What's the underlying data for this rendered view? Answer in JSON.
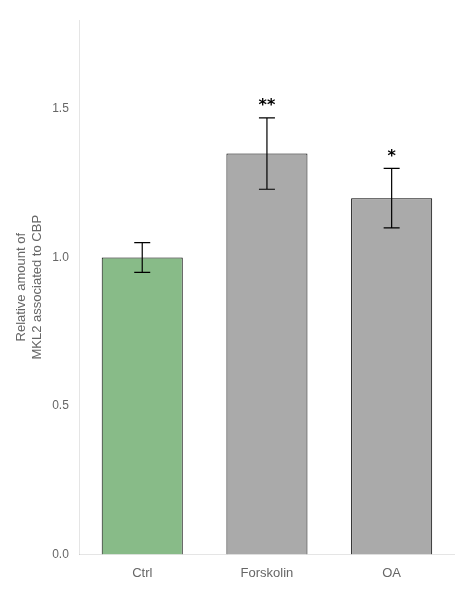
{
  "chart_data": {
    "type": "bar",
    "categories": [
      "Ctrl",
      "Forskolin",
      "OA"
    ],
    "values": [
      1.0,
      1.35,
      1.2
    ],
    "errors": [
      0.05,
      0.12,
      0.1
    ],
    "colors": [
      "#88BB88",
      "#AAAAAA",
      "#AAAAAA"
    ],
    "ylabel": "Relative amount of\nMKL2 associated to CBP",
    "significance": [
      null,
      "**",
      "*"
    ],
    "ylim": [
      0,
      1.8
    ],
    "yticks": [
      {
        "value": 0,
        "label": "0.0"
      },
      {
        "value": 0.5,
        "label": "0.5"
      },
      {
        "value": 1,
        "label": "1.0"
      },
      {
        "value": 1.5,
        "label": "1.5"
      }
    ],
    "grid": false
  }
}
